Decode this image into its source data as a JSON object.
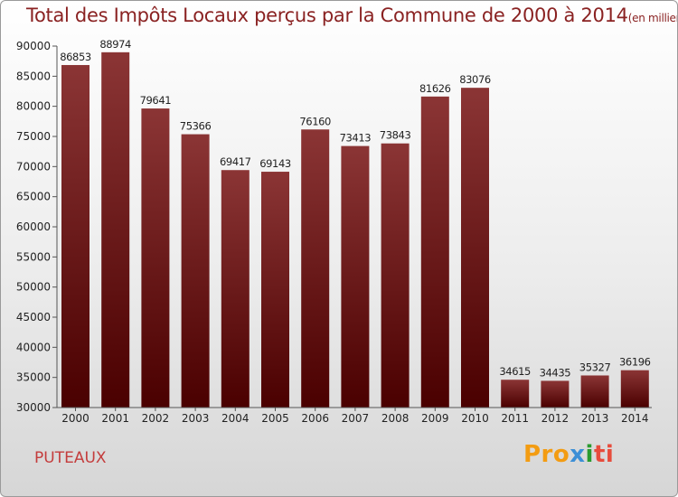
{
  "header": {
    "title": "Total des Impôts Locaux perçus par la Commune de 2000 à 2014",
    "unit": "(en milliers d'€)"
  },
  "footer": {
    "commune": "PUTEAUX",
    "logo": [
      "Pro",
      "x",
      "i",
      "ti"
    ]
  },
  "colors": {
    "bar_top": "#8b3535",
    "bar_bottom": "#4a0000",
    "title": "#8a2222",
    "commune": "#c43c3c"
  },
  "chart_data": {
    "type": "bar",
    "title": "Total des Impôts Locaux perçus par la Commune de 2000 à 2014",
    "xlabel": "",
    "ylabel": "",
    "categories": [
      "2000",
      "2001",
      "2002",
      "2003",
      "2004",
      "2005",
      "2006",
      "2007",
      "2008",
      "2009",
      "2010",
      "2011",
      "2012",
      "2013",
      "2014"
    ],
    "values": [
      86853,
      88974,
      79641,
      75366,
      69417,
      69143,
      76160,
      73413,
      73843,
      81626,
      83076,
      34615,
      34435,
      35327,
      36196
    ],
    "ylim": [
      30000,
      90000
    ],
    "yticks": [
      30000,
      35000,
      40000,
      45000,
      50000,
      55000,
      60000,
      65000,
      70000,
      75000,
      80000,
      85000,
      90000
    ],
    "grid": false,
    "data_labels": true
  }
}
